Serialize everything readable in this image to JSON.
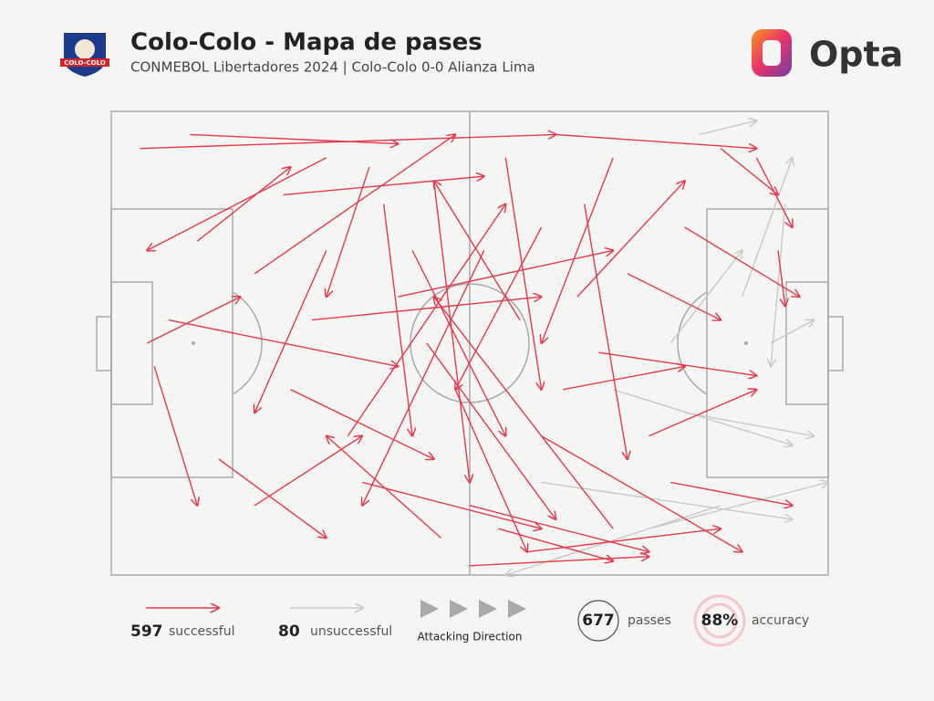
{
  "header": {
    "title": "Colo-Colo - Mapa de pases",
    "subtitle": "CONMEBOL Libertadores 2024 | Colo-Colo 0-0 Alianza Lima",
    "badge": "COLO-COLO",
    "brand": "Opta"
  },
  "passes": {
    "successful_color": "#e43a4c",
    "unsuccessful_color": "#c9c9c9",
    "successful": [
      [
        4,
        8,
        62,
        5
      ],
      [
        11,
        5,
        40,
        7
      ],
      [
        30,
        10,
        5,
        30
      ],
      [
        12,
        28,
        25,
        12
      ],
      [
        5,
        50,
        18,
        40
      ],
      [
        6,
        55,
        12,
        85
      ],
      [
        20,
        35,
        48,
        5
      ],
      [
        25,
        60,
        45,
        75
      ],
      [
        35,
        80,
        60,
        90
      ],
      [
        38,
        20,
        42,
        70
      ],
      [
        45,
        15,
        50,
        80
      ],
      [
        50,
        85,
        75,
        95
      ],
      [
        55,
        10,
        60,
        60
      ],
      [
        60,
        70,
        88,
        95
      ],
      [
        62,
        5,
        90,
        8
      ],
      [
        65,
        40,
        80,
        15
      ],
      [
        70,
        90,
        45,
        40
      ],
      [
        48,
        60,
        58,
        95
      ],
      [
        40,
        40,
        70,
        30
      ],
      [
        33,
        70,
        55,
        20
      ],
      [
        52,
        30,
        35,
        85
      ],
      [
        58,
        95,
        85,
        90
      ],
      [
        75,
        70,
        90,
        60
      ],
      [
        80,
        25,
        96,
        40
      ],
      [
        85,
        8,
        93,
        18
      ],
      [
        70,
        10,
        60,
        50
      ],
      [
        44,
        50,
        62,
        88
      ],
      [
        28,
        45,
        60,
        40
      ],
      [
        15,
        75,
        30,
        92
      ],
      [
        8,
        45,
        40,
        55
      ],
      [
        54,
        90,
        70,
        97
      ],
      [
        63,
        60,
        80,
        55
      ],
      [
        90,
        10,
        95,
        25
      ],
      [
        66,
        20,
        72,
        75
      ],
      [
        30,
        30,
        20,
        65
      ],
      [
        46,
        92,
        30,
        70
      ],
      [
        57,
        45,
        45,
        15
      ],
      [
        78,
        80,
        95,
        85
      ],
      [
        36,
        12,
        30,
        40
      ],
      [
        24,
        18,
        52,
        14
      ],
      [
        68,
        52,
        90,
        57
      ],
      [
        50,
        98,
        75,
        96
      ],
      [
        42,
        30,
        55,
        70
      ],
      [
        60,
        25,
        48,
        60
      ],
      [
        20,
        85,
        35,
        70
      ],
      [
        72,
        35,
        85,
        45
      ],
      [
        93,
        30,
        94,
        42
      ]
    ],
    "unsuccessful": [
      [
        70,
        60,
        95,
        72
      ],
      [
        82,
        5,
        90,
        2
      ],
      [
        88,
        40,
        95,
        10
      ],
      [
        75,
        90,
        100,
        80
      ],
      [
        80,
        65,
        98,
        70
      ],
      [
        60,
        80,
        95,
        88
      ],
      [
        92,
        50,
        98,
        45
      ],
      [
        85,
        85,
        55,
        100
      ],
      [
        78,
        50,
        88,
        30
      ],
      [
        94,
        20,
        92,
        55
      ]
    ]
  },
  "legend": {
    "successful": {
      "value": 597,
      "label": "successful"
    },
    "unsuccessful": {
      "value": 80,
      "label": "unsuccessful"
    },
    "direction": "Attacking Direction",
    "passes": {
      "value": 677,
      "label": "passes"
    },
    "accuracy": {
      "value": "88%",
      "label": "accuracy"
    }
  }
}
